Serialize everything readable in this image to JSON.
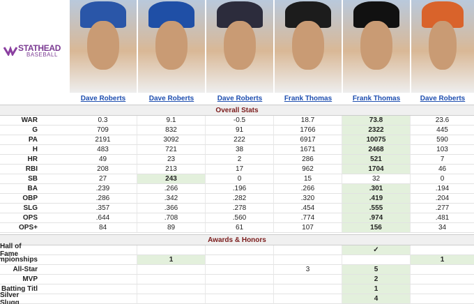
{
  "logo": {
    "name": "STATHEAD",
    "sub": "BASEBALL"
  },
  "players": [
    "Dave Roberts",
    "Dave Roberts",
    "Dave Roberts",
    "Frank Thomas",
    "Frank Thomas",
    "Dave Roberts"
  ],
  "sections": [
    {
      "title": "Overall Stats",
      "rows": [
        {
          "label": "WAR",
          "values": [
            "0.3",
            "9.1",
            "-0.5",
            "18.7",
            "73.8",
            "23.6"
          ],
          "highlight": [
            4
          ]
        },
        {
          "label": "G",
          "values": [
            "709",
            "832",
            "91",
            "1766",
            "2322",
            "445"
          ],
          "highlight": [
            4
          ]
        },
        {
          "label": "PA",
          "values": [
            "2191",
            "3092",
            "222",
            "6917",
            "10075",
            "590"
          ],
          "highlight": [
            4
          ]
        },
        {
          "label": "H",
          "values": [
            "483",
            "721",
            "38",
            "1671",
            "2468",
            "103"
          ],
          "highlight": [
            4
          ]
        },
        {
          "label": "HR",
          "values": [
            "49",
            "23",
            "2",
            "286",
            "521",
            "7"
          ],
          "highlight": [
            4
          ]
        },
        {
          "label": "RBI",
          "values": [
            "208",
            "213",
            "17",
            "962",
            "1704",
            "46"
          ],
          "highlight": [
            4
          ]
        },
        {
          "label": "SB",
          "values": [
            "27",
            "243",
            "0",
            "15",
            "32",
            "0"
          ],
          "highlight": [
            1
          ]
        },
        {
          "label": "BA",
          "values": [
            ".239",
            ".266",
            ".196",
            ".266",
            ".301",
            ".194"
          ],
          "highlight": [
            4
          ]
        },
        {
          "label": "OBP",
          "values": [
            ".286",
            ".342",
            ".282",
            ".320",
            ".419",
            ".204"
          ],
          "highlight": [
            4
          ]
        },
        {
          "label": "SLG",
          "values": [
            ".357",
            ".366",
            ".278",
            ".454",
            ".555",
            ".277"
          ],
          "highlight": [
            4
          ]
        },
        {
          "label": "OPS",
          "values": [
            ".644",
            ".708",
            ".560",
            ".774",
            ".974",
            ".481"
          ],
          "highlight": [
            4
          ]
        },
        {
          "label": "OPS+",
          "values": [
            "84",
            "89",
            "61",
            "107",
            "156",
            "34"
          ],
          "highlight": [
            4
          ]
        }
      ]
    },
    {
      "title": "Awards & Honors",
      "rows": [
        {
          "label": "Hall of Fame",
          "values": [
            null,
            null,
            null,
            null,
            "✓",
            null
          ],
          "highlight": [
            4
          ]
        },
        {
          "label": "Championships",
          "values": [
            null,
            "1",
            null,
            null,
            null,
            "1"
          ],
          "highlight": [
            1,
            5
          ]
        },
        {
          "label": "All-Star",
          "values": [
            null,
            null,
            null,
            "3",
            "5",
            null
          ],
          "highlight": [
            4
          ]
        },
        {
          "label": "MVP",
          "values": [
            null,
            null,
            null,
            null,
            "2",
            null
          ],
          "highlight": [
            4
          ]
        },
        {
          "label": "Batting Titl",
          "values": [
            null,
            null,
            null,
            null,
            "1",
            null
          ],
          "highlight": [
            4
          ]
        },
        {
          "label": "Silver Slugg",
          "values": [
            null,
            null,
            null,
            null,
            "4",
            null
          ],
          "highlight": [
            4
          ]
        }
      ]
    }
  ]
}
